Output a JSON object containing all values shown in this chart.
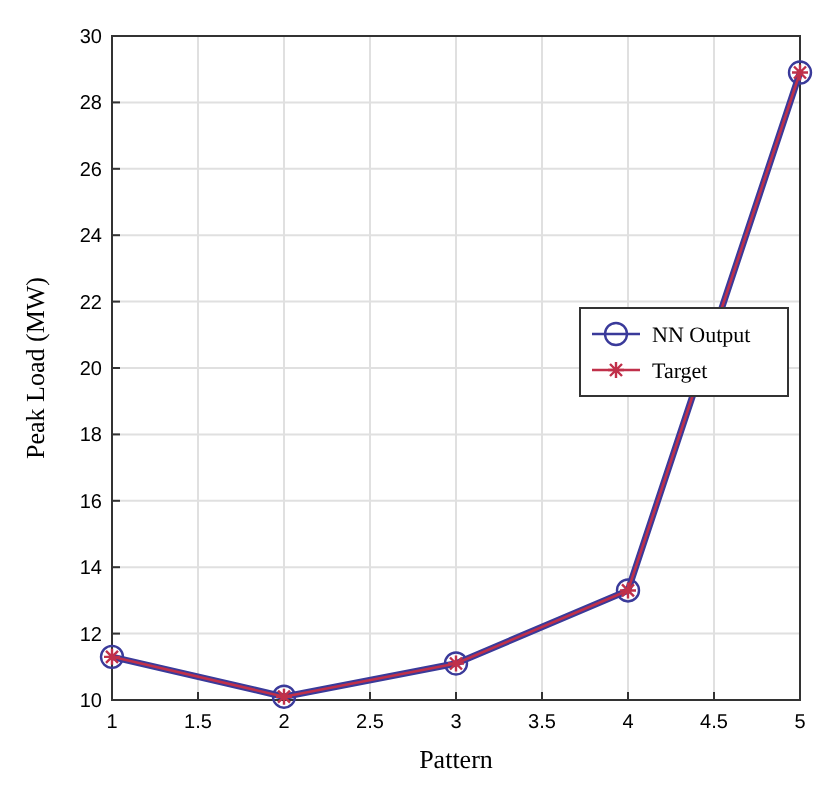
{
  "chart_data": {
    "type": "line",
    "xlabel": "Pattern",
    "ylabel": "Peak Load (MW)",
    "x": [
      1,
      2,
      3,
      4,
      5
    ],
    "series": [
      {
        "name": "NN Output",
        "color": "#3a3a9a",
        "marker": "circle",
        "values": [
          11.3,
          10.1,
          11.1,
          13.3,
          28.9
        ]
      },
      {
        "name": "Target",
        "color": "#c0304a",
        "marker": "cross",
        "values": [
          11.3,
          10.1,
          11.1,
          13.3,
          28.9
        ]
      }
    ],
    "xlim": [
      1,
      5
    ],
    "xticks": [
      1,
      1.5,
      2,
      2.5,
      3,
      3.5,
      4,
      4.5,
      5
    ],
    "ylim": [
      10,
      30
    ],
    "yticks": [
      10,
      12,
      14,
      16,
      18,
      20,
      22,
      24,
      26,
      28,
      30
    ],
    "grid": true,
    "legend": "right",
    "line_style": "solid"
  }
}
